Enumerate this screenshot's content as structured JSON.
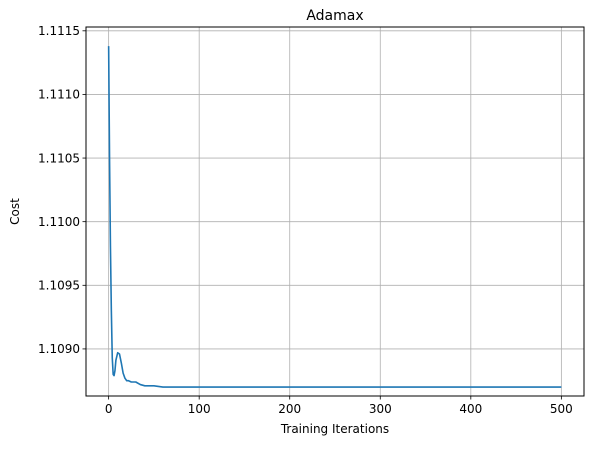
{
  "chart_data": {
    "type": "line",
    "title": "Adamax",
    "xlabel": "Training Iterations",
    "ylabel": "Cost",
    "xlim": [
      -25,
      525
    ],
    "ylim": [
      1.10863,
      1.11153
    ],
    "xticks": [
      0,
      100,
      200,
      300,
      400,
      500
    ],
    "xtick_labels": [
      "0",
      "100",
      "200",
      "300",
      "400",
      "500"
    ],
    "yticks": [
      1.109,
      1.1095,
      1.11,
      1.1105,
      1.111,
      1.1115
    ],
    "ytick_labels": [
      "1.1090",
      "1.1095",
      "1.1100",
      "1.1105",
      "1.1110",
      "1.1115"
    ],
    "grid": true,
    "series": [
      {
        "color": "#1f77b4",
        "x": [
          0,
          1,
          2,
          3,
          4,
          5,
          6,
          7,
          8,
          10,
          12,
          14,
          16,
          18,
          20,
          22,
          25,
          30,
          35,
          40,
          50,
          60,
          80,
          100,
          150,
          200,
          300,
          400,
          500
        ],
        "y": [
          1.11138,
          1.1105,
          1.1098,
          1.1093,
          1.10893,
          1.1088,
          1.10879,
          1.10883,
          1.10891,
          1.10897,
          1.10896,
          1.10889,
          1.10881,
          1.10877,
          1.10875,
          1.10875,
          1.10874,
          1.10874,
          1.10872,
          1.10871,
          1.10871,
          1.1087,
          1.1087,
          1.1087,
          1.1087,
          1.1087,
          1.1087,
          1.1087,
          1.1087
        ]
      }
    ]
  }
}
